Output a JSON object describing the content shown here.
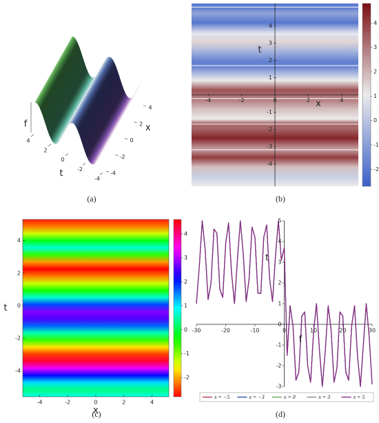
{
  "chart_data": [
    {
      "type": "surface",
      "caption": "(a)",
      "x_label": "x",
      "y_label": "t",
      "z_label": "f",
      "xticks": [
        -4,
        -2,
        0,
        2,
        4
      ],
      "yticks": [
        -4,
        -2,
        0,
        2,
        4
      ]
    },
    {
      "type": "density",
      "caption": "(b)",
      "x_label": "x",
      "y_label": "t",
      "axis_style": "crossed",
      "colormap": "blue-white-red",
      "xlim": [
        -5,
        5
      ],
      "ylim": [
        -5.3,
        5.3
      ],
      "xticks": [
        -4,
        -2,
        0,
        2,
        4
      ],
      "yticks": [
        -4,
        -3,
        -2,
        -1,
        1,
        2,
        3,
        4
      ],
      "colorbar_lim": [
        -2.7,
        4.8
      ],
      "colorbar_ticks": [
        -2,
        -1,
        0,
        1,
        2,
        3,
        4
      ]
    },
    {
      "type": "density",
      "caption": "(c)",
      "x_label": "x",
      "y_label": "t",
      "axis_style": "frame",
      "colormap": "rainbow",
      "xlim": [
        -5.2,
        5.2
      ],
      "ylim": [
        -5.6,
        5.3
      ],
      "xticks": [
        -4,
        -2,
        0,
        2,
        4
      ],
      "yticks": [
        -4,
        -2,
        0,
        2,
        4
      ],
      "colorbar_lim": [
        -2.8,
        4.6
      ],
      "colorbar_ticks": [
        -2,
        -1,
        0,
        1,
        2,
        3,
        4
      ]
    },
    {
      "type": "line",
      "caption": "(d)",
      "x_label": "f",
      "y_label": "t",
      "xlim": [
        -30,
        30
      ],
      "ylim": [
        -3,
        5
      ],
      "xticks": [
        -30,
        -20,
        -10,
        0,
        10,
        20,
        30
      ],
      "yticks": [
        -3,
        -2,
        -1,
        0,
        1,
        2,
        3,
        4,
        5
      ],
      "x": [
        -30,
        -29,
        -28,
        -27,
        -26,
        -25,
        -24,
        -23,
        -22,
        -21,
        -20,
        -19,
        -18,
        -17,
        -16,
        -15,
        -14,
        -13,
        -12,
        -11,
        -10,
        -9,
        -8,
        -7,
        -6,
        -5,
        -4,
        -3,
        -2,
        -1,
        0,
        1,
        2,
        3,
        4,
        5,
        6,
        7,
        8,
        9,
        10,
        11,
        12,
        13,
        14,
        15,
        16,
        17,
        18,
        19,
        20,
        21,
        22,
        23,
        24,
        25,
        26,
        27,
        28,
        29,
        30
      ],
      "series": [
        {
          "name": "x = −5",
          "color": "#b03a48",
          "values": [
            1,
            2.8,
            5,
            3.6,
            1.2,
            2,
            4.6,
            4.4,
            1.7,
            1.3,
            3.9,
            4.9,
            2.5,
            1,
            3.1,
            5,
            3.4,
            1.1,
            2.2,
            4.7,
            4.2,
            1.5,
            1.5,
            4.2,
            4.8,
            2.2,
            1.1,
            3.3,
            5,
            3.1,
            3.7,
            -1.5,
            0.9,
            -0.1,
            -2.7,
            -2.3,
            0.4,
            0.6,
            -2,
            -2.8,
            -0.4,
            1,
            -1.2,
            -3,
            -1.3,
            0.9,
            -0.3,
            -2.8,
            -2.1,
            0.6,
            0.4,
            -2.3,
            -2.7,
            -0.1,
            0.9,
            -1.5,
            -3,
            -1,
            1,
            -0.6,
            -2.9
          ]
        },
        {
          "name": "x = −3",
          "color": "#3050a8",
          "values": [
            1,
            2.8,
            5,
            3.6,
            1.2,
            2,
            4.6,
            4.4,
            1.7,
            1.3,
            3.9,
            4.9,
            2.5,
            1,
            3.1,
            5,
            3.4,
            1.1,
            2.2,
            4.7,
            4.2,
            1.5,
            1.5,
            4.2,
            4.8,
            2.2,
            1.1,
            3.3,
            5,
            3.1,
            3.7,
            -1.5,
            0.9,
            -0.1,
            -2.7,
            -2.3,
            0.4,
            0.6,
            -2,
            -2.8,
            -0.4,
            1,
            -1.2,
            -3,
            -1.3,
            0.9,
            -0.3,
            -2.8,
            -2.1,
            0.6,
            0.4,
            -2.3,
            -2.7,
            -0.1,
            0.9,
            -1.5,
            -3,
            -1,
            1,
            -0.6,
            -2.9
          ]
        },
        {
          "name": "x = 0",
          "color": "#6aa84f",
          "values": [
            1,
            2.8,
            5,
            3.6,
            1.2,
            2,
            4.6,
            4.4,
            1.7,
            1.3,
            3.9,
            4.9,
            2.5,
            1,
            3.1,
            5,
            3.4,
            1.1,
            2.2,
            4.7,
            4.2,
            1.5,
            1.5,
            4.2,
            4.8,
            2.2,
            1.1,
            3.3,
            5,
            3.1,
            3.7,
            -1.5,
            0.9,
            -0.1,
            -2.7,
            -2.3,
            0.4,
            0.6,
            -2,
            -2.8,
            -0.4,
            1,
            -1.2,
            -3,
            -1.3,
            0.9,
            -0.3,
            -2.8,
            -2.1,
            0.6,
            0.4,
            -2.3,
            -2.7,
            -0.1,
            0.9,
            -1.5,
            -3,
            -1,
            1,
            -0.6,
            -2.9
          ]
        },
        {
          "name": "x = 3",
          "color": "#8a8a8a",
          "values": [
            1,
            2.8,
            5,
            3.6,
            1.2,
            2,
            4.6,
            4.4,
            1.7,
            1.3,
            3.9,
            4.9,
            2.5,
            1,
            3.1,
            5,
            3.4,
            1.1,
            2.2,
            4.7,
            4.2,
            1.5,
            1.5,
            4.2,
            4.8,
            2.2,
            1.1,
            3.3,
            5,
            3.1,
            3.7,
            -1.5,
            0.9,
            -0.1,
            -2.7,
            -2.3,
            0.4,
            0.6,
            -2,
            -2.8,
            -0.4,
            1,
            -1.2,
            -3,
            -1.3,
            0.9,
            -0.3,
            -2.8,
            -2.1,
            0.6,
            0.4,
            -2.3,
            -2.7,
            -0.1,
            0.9,
            -1.5,
            -3,
            -1,
            1,
            -0.6,
            -2.9
          ]
        },
        {
          "name": "x = 5",
          "color": "#8a2a8a",
          "values": [
            1,
            2.8,
            5,
            3.6,
            1.2,
            2,
            4.6,
            4.4,
            1.7,
            1.3,
            3.9,
            4.9,
            2.5,
            1,
            3.1,
            5,
            3.4,
            1.1,
            2.2,
            4.7,
            4.2,
            1.5,
            1.5,
            4.2,
            4.8,
            2.2,
            1.1,
            3.3,
            5,
            3.1,
            3.7,
            -1.5,
            0.9,
            -0.1,
            -2.7,
            -2.3,
            0.4,
            0.6,
            -2,
            -2.8,
            -0.4,
            1,
            -1.2,
            -3,
            -1.3,
            0.9,
            -0.3,
            -2.8,
            -2.1,
            0.6,
            0.4,
            -2.3,
            -2.7,
            -0.1,
            0.9,
            -1.5,
            -3,
            -1,
            1,
            -0.6,
            -2.9
          ]
        }
      ]
    }
  ]
}
